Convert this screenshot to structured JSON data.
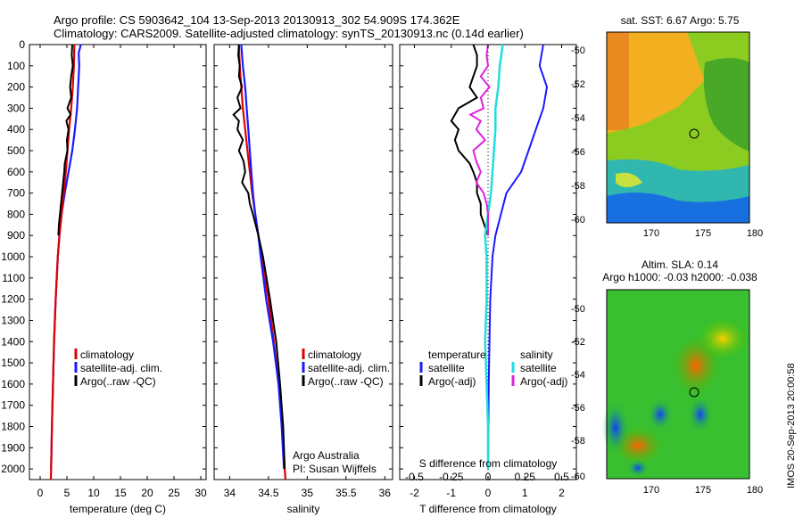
{
  "header": {
    "title_line1": "Argo profile: CS 5903642_104 13-Sep-2013 20130913_302 54.909S 174.362E",
    "title_line2": "Climatology: CARS2009. Satellite-adjusted climatology: synTS_20130913.nc (0.14d earlier)"
  },
  "colors": {
    "climatology": "#e00000",
    "satellite": "#1a1aff",
    "argo": "#000000",
    "sal_satellite": "#22dddd",
    "sal_argo": "#dd22dd"
  },
  "depth_axis": {
    "ylim": [
      0,
      2050
    ],
    "ticks": [
      0,
      100,
      200,
      300,
      400,
      500,
      600,
      700,
      800,
      900,
      1000,
      1100,
      1200,
      1300,
      1400,
      1500,
      1600,
      1700,
      1800,
      1900,
      2000
    ],
    "tick_labels": [
      "0",
      "100",
      "200",
      "300",
      "400",
      "500",
      "600",
      "700",
      "800",
      "900",
      "1000",
      "1100",
      "1200",
      "1300",
      "1400",
      "1500",
      "1600",
      "1700",
      "1800",
      "1900",
      "2000"
    ]
  },
  "chart_data": [
    {
      "type": "line",
      "id": "temperature",
      "xlabel": "temperature (deg C)",
      "xlim": [
        -2,
        31
      ],
      "xticks": [
        0,
        5,
        10,
        15,
        20,
        25,
        30
      ],
      "xtick_labels": [
        "0",
        "5",
        "10",
        "15",
        "20",
        "25",
        "30"
      ],
      "legend": [
        "climatology",
        "satellite-adj. clim.",
        "Argo(..raw -QC)"
      ],
      "series": [
        {
          "name": "climatology",
          "depth": [
            0,
            100,
            200,
            300,
            400,
            500,
            600,
            700,
            800,
            900,
            1000,
            1200,
            1400,
            1600,
            1800,
            2000,
            2050
          ],
          "values": [
            6.4,
            6.3,
            6.1,
            5.8,
            5.4,
            5.1,
            4.8,
            4.4,
            4.0,
            3.6,
            3.3,
            2.9,
            2.6,
            2.4,
            2.2,
            2.05,
            2.0
          ]
        },
        {
          "name": "satellite-adj. clim.",
          "depth": [
            0,
            40,
            100,
            200,
            300,
            400,
            500,
            600,
            700,
            800,
            900,
            1000,
            1200,
            1400,
            1600,
            1800,
            2000
          ],
          "values": [
            7.6,
            7.2,
            7.3,
            7.1,
            6.9,
            6.5,
            6.0,
            5.3,
            4.6,
            4.0,
            3.6,
            3.3,
            2.9,
            2.6,
            2.4,
            2.2,
            2.05
          ]
        },
        {
          "name": "Argo(..raw -QC)",
          "depth": [
            0,
            50,
            100,
            150,
            200,
            250,
            300,
            330,
            360,
            400,
            450,
            500,
            560,
            600,
            650,
            700,
            750,
            800,
            850,
            900
          ],
          "values": [
            6.0,
            5.9,
            6.1,
            5.8,
            5.6,
            5.8,
            5.1,
            5.7,
            4.9,
            5.3,
            5.0,
            5.1,
            4.6,
            4.5,
            4.3,
            4.1,
            3.9,
            3.7,
            3.5,
            3.4
          ]
        }
      ]
    },
    {
      "type": "line",
      "id": "salinity",
      "xlabel": "salinity",
      "xlim": [
        33.8,
        36.1
      ],
      "xticks": [
        34,
        34.5,
        35,
        35.5,
        36
      ],
      "xtick_labels": [
        "34",
        "34.5",
        "35",
        "35.5",
        "36"
      ],
      "legend": [
        "climatology",
        "satellite-adj. clim.",
        "Argo(..raw -QC)"
      ],
      "annotations": [
        "Argo Australia",
        "PI: Susan Wijffels"
      ],
      "series": [
        {
          "name": "climatology",
          "depth": [
            0,
            100,
            200,
            300,
            400,
            500,
            600,
            700,
            800,
            900,
            1000,
            1200,
            1400,
            1600,
            1800,
            2000,
            2050
          ],
          "values": [
            34.12,
            34.13,
            34.15,
            34.17,
            34.2,
            34.23,
            34.26,
            34.29,
            34.33,
            34.37,
            34.41,
            34.5,
            34.57,
            34.63,
            34.68,
            34.71,
            34.72
          ]
        },
        {
          "name": "satellite-adj. clim.",
          "depth": [
            0,
            100,
            200,
            300,
            400,
            500,
            600,
            700,
            800,
            900,
            1000,
            1200,
            1400,
            1600,
            1800,
            2000
          ],
          "values": [
            34.15,
            34.17,
            34.2,
            34.22,
            34.24,
            34.26,
            34.28,
            34.3,
            34.33,
            34.37,
            34.4,
            34.47,
            34.56,
            34.63,
            34.67,
            34.7
          ]
        },
        {
          "name": "Argo(..raw -QC)",
          "depth": [
            0,
            50,
            100,
            150,
            200,
            250,
            300,
            330,
            360,
            400,
            450,
            500,
            550,
            600,
            650,
            700,
            750,
            800,
            900,
            1000,
            1200,
            1400,
            1600,
            1800,
            2000
          ],
          "values": [
            34.12,
            34.11,
            34.13,
            34.12,
            34.16,
            34.1,
            34.14,
            34.05,
            34.12,
            34.1,
            34.17,
            34.12,
            34.18,
            34.2,
            34.16,
            34.24,
            34.26,
            34.3,
            34.37,
            34.43,
            34.52,
            34.6,
            34.65,
            34.69,
            34.71
          ]
        }
      ]
    },
    {
      "type": "line",
      "id": "difference",
      "xlabel_top": "S difference from climatology",
      "xlabel": "T difference from climatology",
      "xlim": [
        -2.4,
        2.4
      ],
      "xticks": [
        -2,
        -1,
        0,
        1,
        2
      ],
      "xtick_labels": [
        "-2",
        "-1",
        "0",
        "1",
        "2"
      ],
      "sticks": [
        -0.5,
        -0.25,
        0,
        0.25,
        0.5
      ],
      "stick_labels": [
        "-0.5",
        "-0.25",
        "0",
        "0.25",
        "0.5"
      ],
      "legend_temperature": [
        "temperature",
        "satellite",
        "Argo(-adj)"
      ],
      "legend_salinity": [
        "salinity",
        "satellite",
        "Argo(-adj)"
      ],
      "series": [
        {
          "name": "temperature satellite",
          "depth": [
            0,
            100,
            200,
            300,
            400,
            500,
            600,
            700,
            800,
            900,
            1000,
            1200,
            1400,
            1600,
            1800,
            2000
          ],
          "values": [
            1.5,
            1.4,
            1.6,
            1.5,
            1.3,
            1.1,
            0.9,
            0.5,
            0.35,
            0.2,
            0.12,
            0.06,
            0.04,
            0.02,
            0.01,
            0.0
          ]
        },
        {
          "name": "temperature Argo(-adj)",
          "depth": [
            0,
            50,
            100,
            200,
            250,
            300,
            330,
            360,
            400,
            450,
            500,
            560,
            600,
            650,
            700,
            750,
            800,
            850,
            900
          ],
          "values": [
            -0.4,
            -0.3,
            -0.3,
            -0.5,
            -0.3,
            -0.8,
            -0.9,
            -1.0,
            -0.8,
            -0.9,
            -0.8,
            -0.5,
            -0.4,
            -0.3,
            -0.3,
            -0.2,
            -0.2,
            -0.1,
            0.0
          ]
        },
        {
          "name": "salinity satellite",
          "depth": [
            0,
            100,
            200,
            300,
            400,
            500,
            600,
            700,
            800,
            900,
            1000,
            1200,
            1400,
            1600,
            1800,
            2000
          ],
          "values": [
            0.1,
            0.08,
            0.07,
            0.05,
            0.05,
            0.04,
            0.03,
            0.02,
            0.0,
            -0.02,
            -0.01,
            -0.01,
            -0.02,
            -0.01,
            0.0,
            0.0
          ]
        },
        {
          "name": "salinity Argo(-adj)",
          "depth": [
            0,
            50,
            100,
            150,
            200,
            250,
            300,
            330,
            360,
            400,
            450,
            500,
            550,
            600,
            650,
            700,
            750,
            800,
            900
          ],
          "values": [
            0.0,
            -0.01,
            0.0,
            -0.05,
            0.01,
            -0.05,
            -0.03,
            -0.12,
            -0.05,
            -0.08,
            -0.02,
            -0.1,
            -0.08,
            -0.05,
            -0.08,
            -0.03,
            -0.01,
            0.0,
            0.0
          ]
        }
      ]
    }
  ],
  "maps": {
    "sst": {
      "title": "sat. SST: 6.67 Argo: 5.75",
      "lat_ticks": [
        "-50",
        "-52",
        "-54",
        "-56",
        "-58",
        "-60"
      ],
      "lon_ticks": [
        "170",
        "175",
        "180"
      ]
    },
    "sla": {
      "title1": "Altim. SLA: 0.14",
      "title2": "Argo h1000: -0.03 h2000: -0.038",
      "lat_ticks": [
        "-50",
        "-52",
        "-54",
        "-56",
        "-58",
        "-60"
      ],
      "lon_ticks": [
        "170",
        "175",
        "180"
      ]
    }
  },
  "footer": {
    "watermark": "IMOS 20-Sep-2013 20:00:58"
  }
}
